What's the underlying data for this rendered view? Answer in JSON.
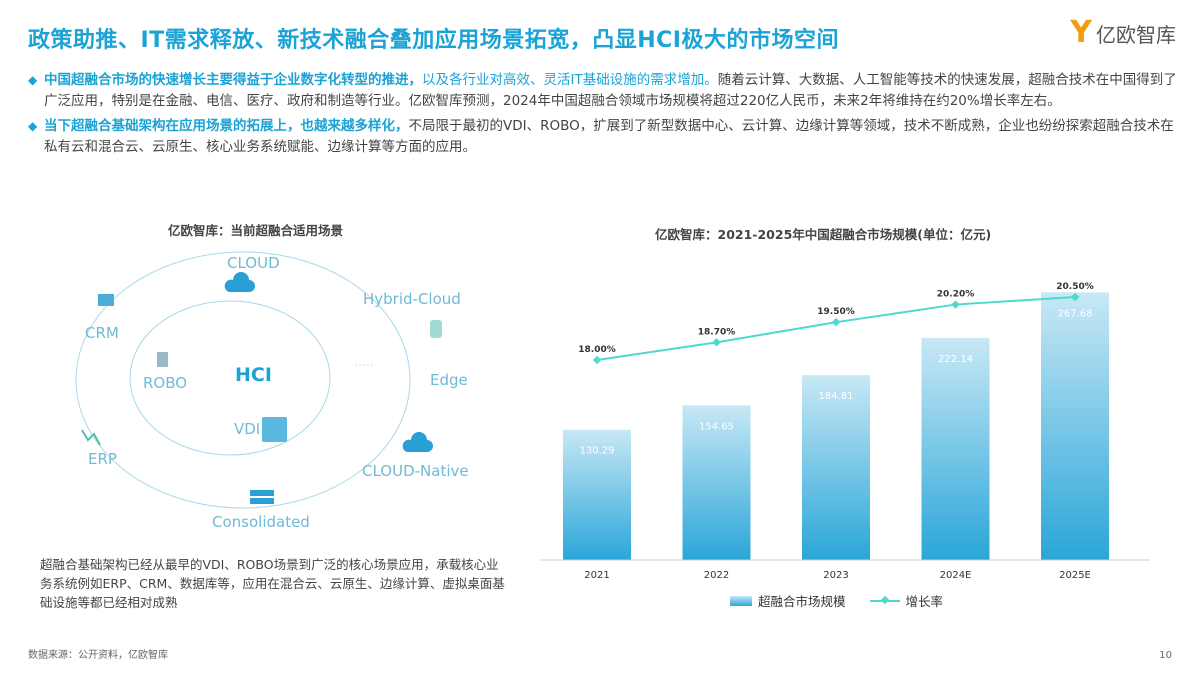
{
  "header": {
    "title": "政策助推、IT需求释放、新技术融合叠加应用场景拓宽，凸显HCI极大的市场空间",
    "logo_text": "亿欧智库"
  },
  "bullets": [
    {
      "highlight": "中国超融合市场的快速增长主要得益于企业数字化转型的推进，",
      "light": "以及各行业对高效、灵活IT基础设施的需求增加。",
      "rest": "随着云计算、大数据、人工智能等技术的快速发展，超融合技术在中国得到了广泛应用，特别是在金融、电信、医疗、政府和制造等行业。亿欧智库预测，2024年中国超融合领域市场规模将超过220亿人民币，未来2年将维持在约20%增长率左右。"
    },
    {
      "highlight": "当下超融合基础架构在应用场景的拓展上，也越来越多样化，",
      "light": "",
      "rest": "不局限于最初的VDI、ROBO，扩展到了新型数据中心、云计算、边缘计算等领域，技术不断成熟，企业也纷纷探索超融合技术在私有云和混合云、云原生、核心业务系统赋能、边缘计算等方面的应用。"
    }
  ],
  "diagram": {
    "title": "亿欧智库：当前超融合适用场景",
    "center": "HCI",
    "inner": [
      "ROBO",
      "VDI"
    ],
    "outer": [
      "CLOUD",
      "Hybrid-Cloud",
      "Edge",
      "CLOUD-Native",
      "Consolidated",
      "ERP",
      "CRM"
    ],
    "note": "超融合基础架构已经从最早的VDI、ROBO场景到广泛的核心场景应用，承载核心业务系统例如ERP、CRM、数据库等，应用在混合云、云原生、边缘计算、虚拟桌面基础设施等都已经相对成熟"
  },
  "chart_data": {
    "type": "bar+line",
    "title": "亿欧智库：2021-2025年中国超融合市场规模(单位：亿元)",
    "categories": [
      "2021",
      "2022",
      "2023",
      "2024E",
      "2025E"
    ],
    "series": [
      {
        "name": "超融合市场规模",
        "type": "bar",
        "values": [
          130.29,
          154.65,
          184.81,
          222.14,
          267.68
        ],
        "labels": [
          "130.29",
          "154.65",
          "184.81",
          "222.14",
          "267.68"
        ],
        "color": "#2aa6d8"
      },
      {
        "name": "增长率",
        "type": "line",
        "values": [
          18.0,
          18.7,
          19.5,
          20.2,
          20.5
        ],
        "labels": [
          "18.00%",
          "18.70%",
          "19.50%",
          "20.20%",
          "20.50%"
        ],
        "color": "#4fd8d0"
      }
    ],
    "legend": "bottom"
  },
  "footer": {
    "source": "数据来源：公开资料，亿欧智库",
    "page": "10"
  }
}
